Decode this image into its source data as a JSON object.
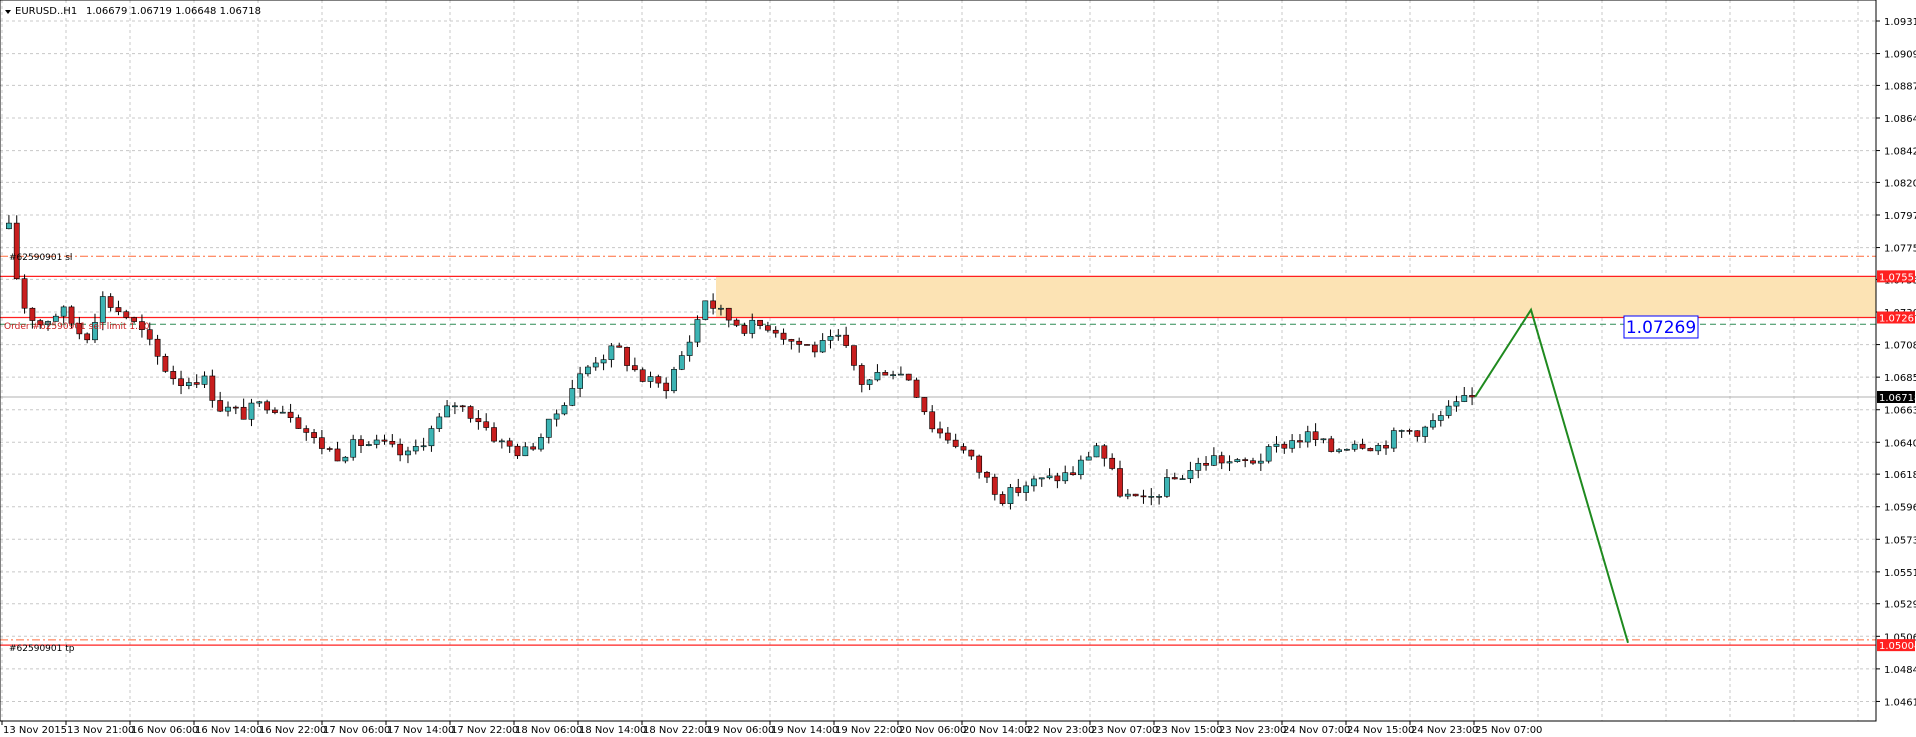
{
  "header": {
    "symbol": "EURUSD..H1",
    "ohlc": "1.06679 1.06719 1.06648 1.06718"
  },
  "colors": {
    "bull": "#3cb4b4",
    "bear": "#c81e1e",
    "grid": "#c8c8c8",
    "zone": "#fce3b4",
    "projection": "#1f8a1f",
    "sl_line": "#ff6a3a",
    "level_line": "#ff2020",
    "entry_line": "#2e8b57",
    "label_box": "#0000ff"
  },
  "labels": {
    "sl": "#62590901 sl",
    "tp": "#62590901 tp",
    "entry": "Order #62590901 sell limit 1.50",
    "target_box": "1.07269"
  },
  "chart_data": {
    "type": "candlestick",
    "title": "EURUSD..H1",
    "y_axis_ticks": [
      "1.09315",
      "1.09090",
      "1.08870",
      "1.08645",
      "1.08420",
      "1.08200",
      "1.07975",
      "1.07750",
      "1.07530",
      "1.07305",
      "1.07080",
      "1.06855",
      "1.06630",
      "1.06405",
      "1.06185",
      "1.05960",
      "1.05735",
      "1.05510",
      "1.05290",
      "1.05065",
      "1.04840",
      "1.04615"
    ],
    "ylim": [
      1.0448,
      1.0946
    ],
    "x_axis_ticks": [
      "13 Nov 2015",
      "13 Nov 21:00",
      "16 Nov 06:00",
      "16 Nov 14:00",
      "16 Nov 22:00",
      "17 Nov 06:00",
      "17 Nov 14:00",
      "17 Nov 22:00",
      "18 Nov 06:00",
      "18 Nov 14:00",
      "18 Nov 22:00",
      "19 Nov 06:00",
      "19 Nov 14:00",
      "19 Nov 22:00",
      "20 Nov 06:00",
      "20 Nov 14:00",
      "22 Nov 23:00",
      "23 Nov 07:00",
      "23 Nov 15:00",
      "23 Nov 23:00",
      "24 Nov 07:00",
      "24 Nov 15:00",
      "24 Nov 23:00",
      "25 Nov 07:00"
    ],
    "price_tags": {
      "upper_level": "1.07551",
      "entry_level": "1.07267",
      "current": "1.06718",
      "tp_level": "1.05004"
    },
    "levels": {
      "sl": 1.0769,
      "upper": 1.07551,
      "entry": 1.07267,
      "dashed_green": 1.0722,
      "current": 1.06718,
      "tp_dash": 1.0504,
      "tp": 1.05004
    },
    "zone": {
      "start_index": 107,
      "low": 1.07267,
      "high": 1.07551
    },
    "projection": [
      {
        "index": 222,
        "price": 1.06718
      },
      {
        "index": 229,
        "price": 1.0732
      },
      {
        "index": 244,
        "price": 1.0502
      }
    ],
    "candles": []
  }
}
